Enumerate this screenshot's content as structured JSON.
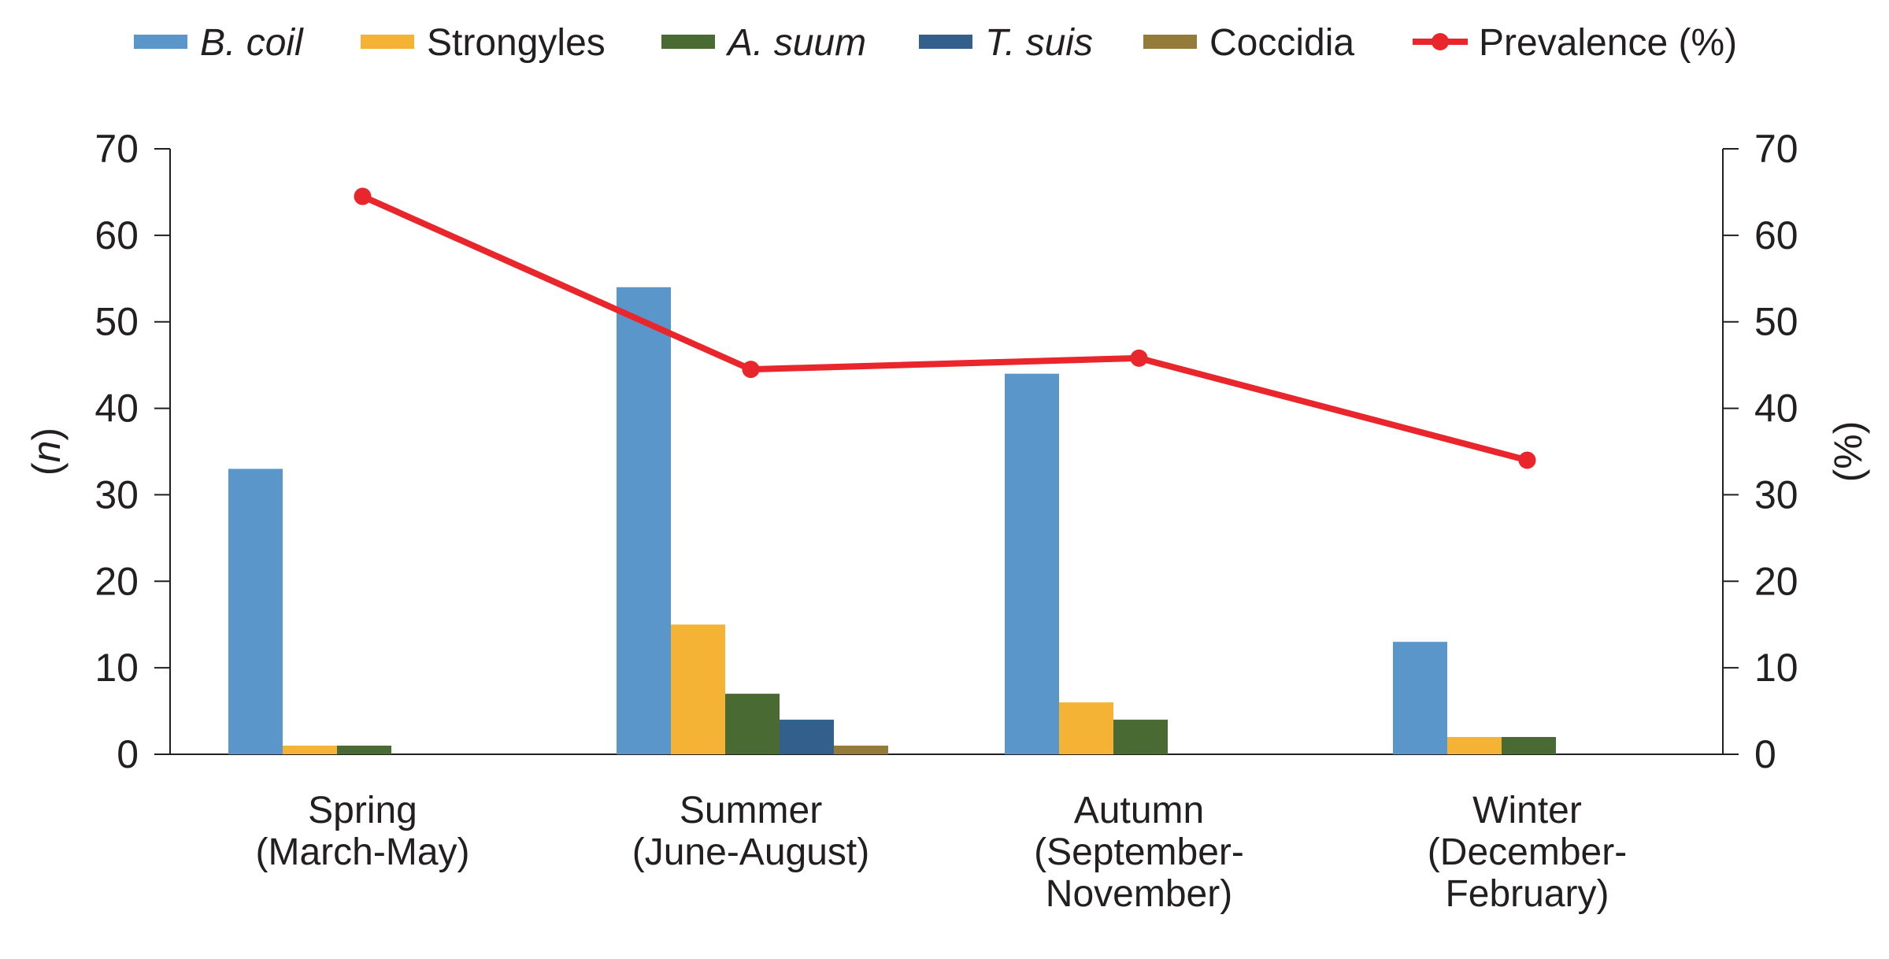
{
  "chart_data": {
    "type": "bar",
    "combo": "grouped bars (left axis) with a line series (right axis)",
    "categories": [
      [
        "Spring",
        "(March-May)"
      ],
      [
        "Summer",
        "(June-August)"
      ],
      [
        "Autumn",
        "(September-",
        "November)"
      ],
      [
        "Winter",
        "(December-",
        "February)"
      ]
    ],
    "series": [
      {
        "name": "B. coil",
        "italic": true,
        "type": "bar",
        "axis": "left",
        "color": "#5b96cb",
        "values": [
          33,
          54,
          44,
          13
        ]
      },
      {
        "name": "Strongyles",
        "italic": false,
        "type": "bar",
        "axis": "left",
        "color": "#f5b335",
        "values": [
          1,
          15,
          6,
          2
        ]
      },
      {
        "name": "A. suum",
        "italic": true,
        "type": "bar",
        "axis": "left",
        "color": "#4a6a34",
        "values": [
          1,
          7,
          4,
          2
        ]
      },
      {
        "name": "T. suis",
        "italic": true,
        "type": "bar",
        "axis": "left",
        "color": "#335f8d",
        "values": [
          0,
          4,
          0,
          0
        ]
      },
      {
        "name": "Coccidia",
        "italic": false,
        "type": "bar",
        "axis": "left",
        "color": "#947b39",
        "values": [
          0,
          1,
          0,
          0
        ]
      },
      {
        "name": "Prevalence (%)",
        "italic": false,
        "type": "line",
        "axis": "right",
        "color": "#e8262b",
        "values": [
          64.5,
          44.5,
          45.8,
          34.0
        ]
      }
    ],
    "ylabel_left": "(n)",
    "ylabel_right": "(%)",
    "ylim_left": [
      0,
      70
    ],
    "ylim_right": [
      0,
      70
    ],
    "yticks": [
      0,
      10,
      20,
      30,
      40,
      50,
      60,
      70
    ],
    "grid": false,
    "legend_position": "top"
  }
}
